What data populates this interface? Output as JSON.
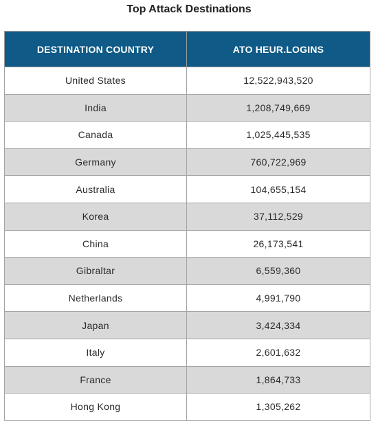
{
  "title": "Top Attack Destinations",
  "table": {
    "headers": [
      "DESTINATION COUNTRY",
      "ATO HEUR.LOGINS"
    ],
    "rows": [
      [
        "United States",
        "12,522,943,520"
      ],
      [
        "India",
        "1,208,749,669"
      ],
      [
        "Canada",
        "1,025,445,535"
      ],
      [
        "Germany",
        "760,722,969"
      ],
      [
        "Australia",
        "104,655,154"
      ],
      [
        "Korea",
        "37,112,529"
      ],
      [
        "China",
        "26,173,541"
      ],
      [
        "Gibraltar",
        "6,559,360"
      ],
      [
        "Netherlands",
        "4,991,790"
      ],
      [
        "Japan",
        "3,424,334"
      ],
      [
        "Italy",
        "2,601,632"
      ],
      [
        "France",
        "1,864,733"
      ],
      [
        "Hong Kong",
        "1,305,262"
      ]
    ]
  },
  "colors": {
    "header_bg": "#0f5a86",
    "header_text": "#ffffff",
    "row_alt_bg": "#d9d9d9",
    "row_bg": "#ffffff"
  }
}
